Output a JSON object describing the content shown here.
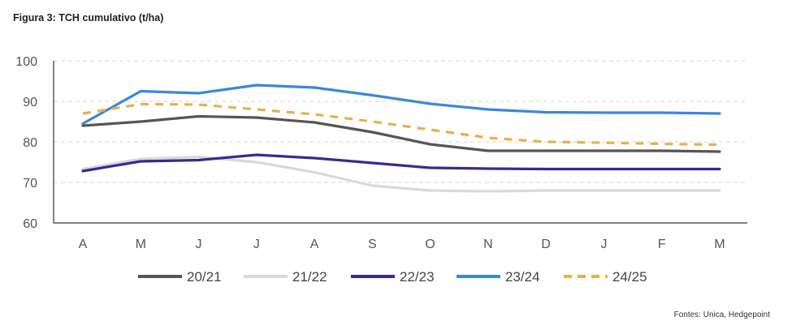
{
  "figure_title": "Figura 3: TCH cumulativo (t/ha)",
  "source": "Fontes: Unica, Hedgepoint",
  "chart_data": {
    "type": "line",
    "title": "",
    "xlabel": "",
    "ylabel": "",
    "categories": [
      "A",
      "M",
      "J",
      "J",
      "A",
      "S",
      "O",
      "N",
      "D",
      "J",
      "F",
      "M"
    ],
    "ylim": [
      60,
      100
    ],
    "yticks": [
      60,
      70,
      80,
      90,
      100
    ],
    "grid": "horizontal-dashed",
    "legend": "bottom",
    "series": [
      {
        "name": "20/21",
        "color": "#555555",
        "style": "solid",
        "values": [
          84.0,
          85.0,
          86.3,
          86.0,
          84.8,
          82.4,
          79.4,
          77.8,
          77.8,
          77.8,
          77.8,
          77.6
        ]
      },
      {
        "name": "21/22",
        "color": "#d9d9d9",
        "style": "solid",
        "values": [
          73.3,
          75.8,
          76.3,
          75.0,
          72.5,
          69.2,
          68.0,
          67.8,
          68.0,
          68.0,
          68.0,
          68.0
        ]
      },
      {
        "name": "22/23",
        "color": "#3a2a8c",
        "style": "solid",
        "values": [
          72.8,
          75.2,
          75.5,
          76.8,
          76.0,
          74.8,
          73.6,
          73.4,
          73.3,
          73.3,
          73.3,
          73.3
        ]
      },
      {
        "name": "23/24",
        "color": "#3d87d8",
        "style": "solid",
        "values": [
          84.5,
          92.5,
          92.0,
          94.0,
          93.4,
          91.5,
          89.4,
          88.0,
          87.3,
          87.2,
          87.2,
          87.0
        ]
      },
      {
        "name": "24/25",
        "color": "#e8b04d",
        "style": "dashed",
        "values": [
          87.0,
          89.3,
          89.2,
          88.0,
          86.8,
          85.0,
          83.0,
          81.0,
          80.0,
          79.8,
          79.5,
          79.3
        ]
      }
    ]
  }
}
